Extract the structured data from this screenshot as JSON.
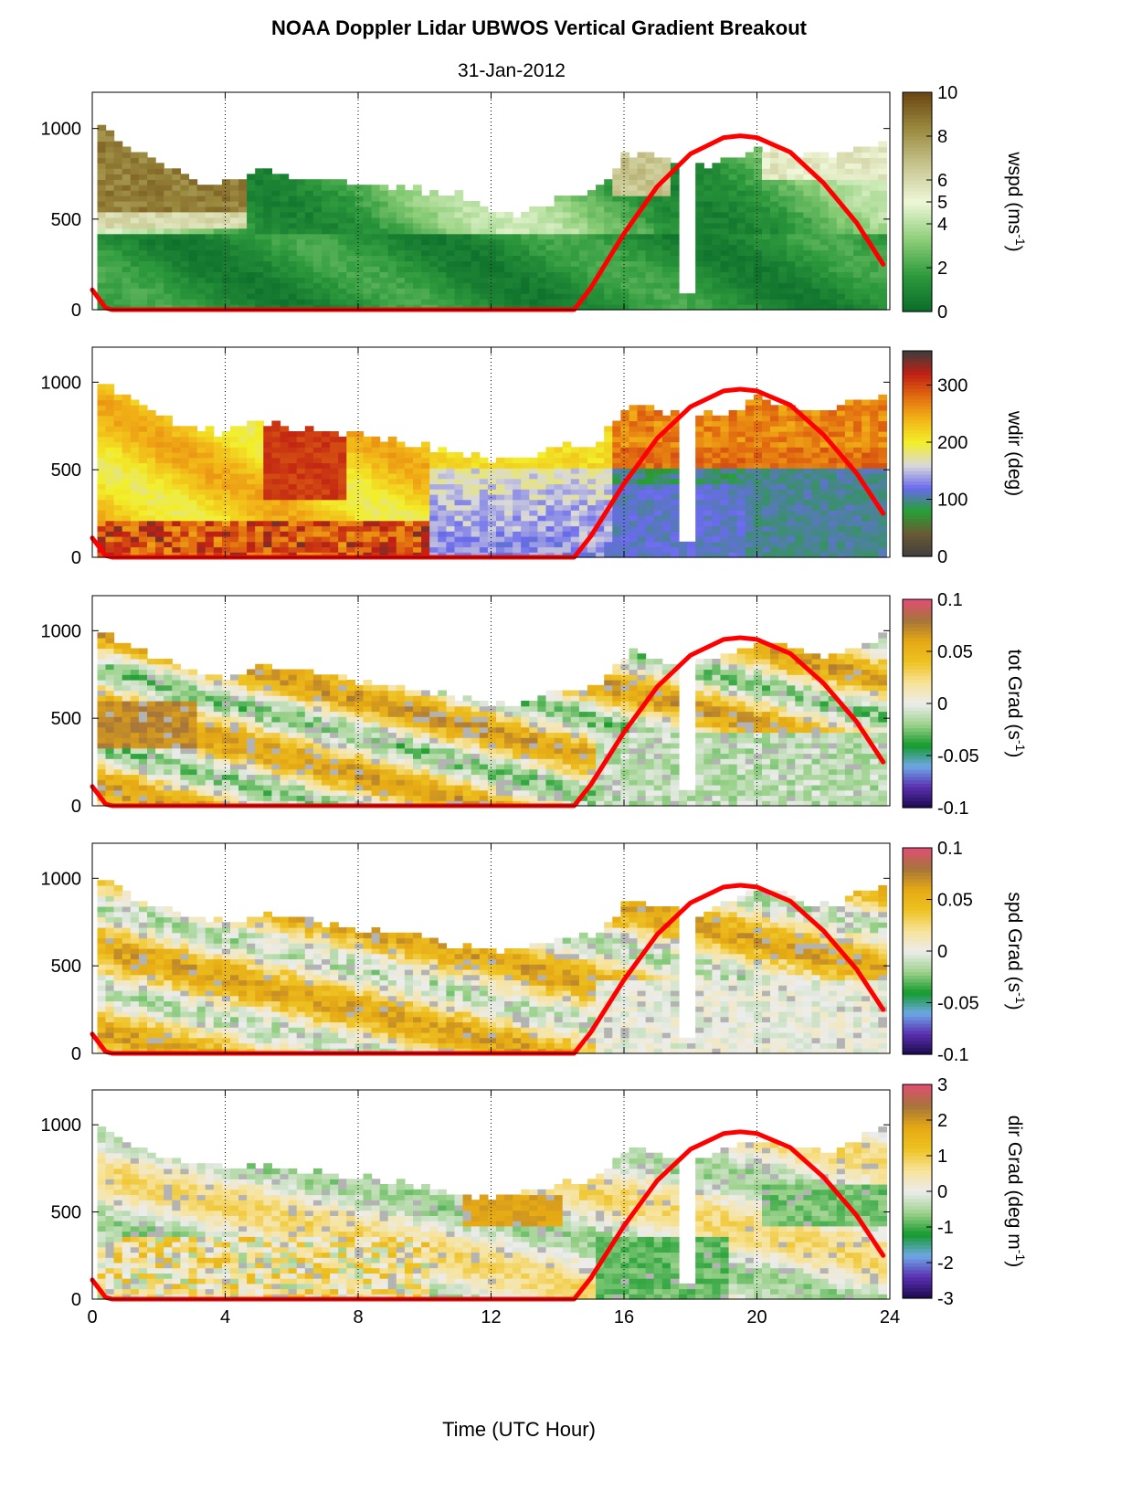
{
  "figure": {
    "title": "NOAA Doppler Lidar  UBWOS  Vertical Gradient Breakout",
    "subtitle": "31-Jan-2012",
    "xlabel": "Time (UTC Hour)"
  },
  "chart_data": [
    {
      "type": "heatmap",
      "name": "wspd",
      "ylabel": "wspd (ms",
      "ylabel_sup": "-1",
      "ylabel_end": ")",
      "xlim": [
        0,
        24
      ],
      "ylim": [
        0,
        1200
      ],
      "xticks": [
        0,
        4,
        8,
        12,
        16,
        20,
        24
      ],
      "yticks": [
        0,
        500,
        1000
      ],
      "grid": "vertical dotted at 4,8,12,16,20",
      "colorbar": {
        "range": [
          0,
          10
        ],
        "ticks": [
          0,
          2,
          4,
          5,
          6,
          8,
          10
        ],
        "tick_labels": [
          "0",
          "2",
          "4",
          "5",
          "6",
          "8",
          "10"
        ],
        "colors": [
          "#0a6b2a",
          "#2e9a3d",
          "#8fcf7a",
          "#eef7d8",
          "#c8c690",
          "#9b8a40",
          "#6b4611"
        ]
      },
      "top_height_profile": [
        [
          0,
          1000
        ],
        [
          1,
          870
        ],
        [
          2,
          800
        ],
        [
          3,
          700
        ],
        [
          4,
          680
        ],
        [
          5,
          760
        ],
        [
          6,
          720
        ],
        [
          7,
          700
        ],
        [
          8,
          680
        ],
        [
          9,
          650
        ],
        [
          10,
          640
        ],
        [
          11,
          620
        ],
        [
          12,
          520
        ],
        [
          13,
          520
        ],
        [
          14,
          600
        ],
        [
          15,
          640
        ],
        [
          16,
          860
        ],
        [
          17,
          820
        ],
        [
          18,
          780
        ],
        [
          19,
          800
        ],
        [
          20,
          880
        ],
        [
          21,
          860
        ],
        [
          22,
          820
        ],
        [
          23,
          880
        ],
        [
          24,
          900
        ]
      ],
      "gap": {
        "x": [
          17.85,
          18.05
        ],
        "y": [
          70,
          800
        ]
      }
    },
    {
      "type": "heatmap",
      "name": "wdir",
      "ylabel": "wdir (deg)",
      "xlim": [
        0,
        24
      ],
      "ylim": [
        0,
        1200
      ],
      "xticks": [
        0,
        4,
        8,
        12,
        16,
        20,
        24
      ],
      "yticks": [
        0,
        500,
        1000
      ],
      "colorbar": {
        "range": [
          0,
          360
        ],
        "ticks": [
          0,
          100,
          200,
          300
        ],
        "tick_labels": [
          "0",
          "100",
          "200",
          "300"
        ],
        "colors": [
          "#3f3f3f",
          "#6a5a34",
          "#26a035",
          "#6a6aee",
          "#d9d9d9",
          "#f2ef2a",
          "#f2b617",
          "#e26d10",
          "#c02014",
          "#3d3d3d"
        ]
      },
      "top_height_profile": [
        [
          0,
          1000
        ],
        [
          1,
          900
        ],
        [
          2,
          780
        ],
        [
          3,
          720
        ],
        [
          4,
          700
        ],
        [
          5,
          760
        ],
        [
          6,
          720
        ],
        [
          7,
          700
        ],
        [
          8,
          680
        ],
        [
          9,
          650
        ],
        [
          10,
          620
        ],
        [
          11,
          560
        ],
        [
          12,
          540
        ],
        [
          13,
          560
        ],
        [
          14,
          620
        ],
        [
          15,
          640
        ],
        [
          16,
          860
        ],
        [
          17,
          820
        ],
        [
          18,
          780
        ],
        [
          19,
          820
        ],
        [
          20,
          900
        ],
        [
          21,
          860
        ],
        [
          22,
          820
        ],
        [
          23,
          900
        ],
        [
          24,
          920
        ]
      ],
      "gap": {
        "x": [
          17.85,
          18.05
        ],
        "y": [
          70,
          800
        ]
      }
    },
    {
      "type": "heatmap",
      "name": "tot Grad",
      "ylabel": "tot Grad (s",
      "ylabel_sup": "-1",
      "ylabel_end": ")",
      "xlim": [
        0,
        24
      ],
      "ylim": [
        0,
        1200
      ],
      "xticks": [
        0,
        4,
        8,
        12,
        16,
        20,
        24
      ],
      "yticks": [
        0,
        500,
        1000
      ],
      "colorbar": {
        "range": [
          -0.1,
          0.1
        ],
        "ticks": [
          -0.1,
          -0.05,
          0,
          0.05,
          0.1
        ],
        "tick_labels": [
          "-0.1",
          "-0.05",
          "0",
          "0.05",
          "0.1"
        ],
        "colors": [
          "#1a0a4a",
          "#5a2fb0",
          "#6ea8e6",
          "#159a2c",
          "#9cd28c",
          "#ececec",
          "#f7e39a",
          "#eec222",
          "#e5a814",
          "#a6753a",
          "#e04e74"
        ]
      },
      "top_height_profile": [
        [
          0,
          1000
        ],
        [
          1,
          880
        ],
        [
          2,
          820
        ],
        [
          3,
          760
        ],
        [
          4,
          720
        ],
        [
          5,
          780
        ],
        [
          6,
          760
        ],
        [
          7,
          720
        ],
        [
          8,
          700
        ],
        [
          9,
          680
        ],
        [
          10,
          640
        ],
        [
          11,
          600
        ],
        [
          12,
          560
        ],
        [
          13,
          580
        ],
        [
          14,
          640
        ],
        [
          15,
          660
        ],
        [
          16,
          860
        ],
        [
          17,
          820
        ],
        [
          18,
          780
        ],
        [
          19,
          860
        ],
        [
          20,
          920
        ],
        [
          21,
          880
        ],
        [
          22,
          820
        ],
        [
          23,
          900
        ],
        [
          24,
          980
        ]
      ],
      "gap": {
        "x": [
          17.85,
          18.05
        ],
        "y": [
          70,
          800
        ]
      }
    },
    {
      "type": "heatmap",
      "name": "spd Grad",
      "ylabel": "spd Grad (s",
      "ylabel_sup": "-1",
      "ylabel_end": ")",
      "xlim": [
        0,
        24
      ],
      "ylim": [
        0,
        1200
      ],
      "xticks": [
        0,
        4,
        8,
        12,
        16,
        20,
        24
      ],
      "yticks": [
        0,
        500,
        1000
      ],
      "colorbar": {
        "range": [
          -0.1,
          0.1
        ],
        "ticks": [
          -0.1,
          -0.05,
          0,
          0.05,
          0.1
        ],
        "tick_labels": [
          "-0.1",
          "-0.05",
          "0",
          "0.05",
          "0.1"
        ],
        "colors": [
          "#1a0a4a",
          "#5a2fb0",
          "#6ea8e6",
          "#159a2c",
          "#9cd28c",
          "#ececec",
          "#f7e39a",
          "#eec222",
          "#e5a814",
          "#a6753a",
          "#e04e74"
        ]
      },
      "top_height_profile": [
        [
          0,
          1000
        ],
        [
          1,
          880
        ],
        [
          2,
          820
        ],
        [
          3,
          760
        ],
        [
          4,
          720
        ],
        [
          5,
          780
        ],
        [
          6,
          760
        ],
        [
          7,
          720
        ],
        [
          8,
          700
        ],
        [
          9,
          680
        ],
        [
          10,
          640
        ],
        [
          11,
          600
        ],
        [
          12,
          560
        ],
        [
          13,
          580
        ],
        [
          14,
          640
        ],
        [
          15,
          660
        ],
        [
          16,
          860
        ],
        [
          17,
          820
        ],
        [
          18,
          780
        ],
        [
          19,
          860
        ],
        [
          20,
          920
        ],
        [
          21,
          880
        ],
        [
          22,
          820
        ],
        [
          23,
          900
        ],
        [
          24,
          980
        ]
      ],
      "gap": {
        "x": [
          17.85,
          18.05
        ],
        "y": [
          70,
          800
        ]
      }
    },
    {
      "type": "heatmap",
      "name": "dir Grad",
      "ylabel": "dir Grad (deg m",
      "ylabel_sup": "-1",
      "ylabel_end": ")",
      "xlim": [
        0,
        24
      ],
      "ylim": [
        0,
        1200
      ],
      "xticks": [
        0,
        4,
        8,
        12,
        16,
        20,
        24
      ],
      "xtick_labels": [
        "0",
        "4",
        "8",
        "12",
        "16",
        "20",
        "24"
      ],
      "yticks": [
        0,
        500,
        1000
      ],
      "colorbar": {
        "range": [
          -3,
          3
        ],
        "ticks": [
          -3,
          -2,
          -1,
          0,
          1,
          2,
          3
        ],
        "tick_labels": [
          "-3",
          "-2",
          "-1",
          "0",
          "1",
          "2",
          "3"
        ],
        "colors": [
          "#1a0a4a",
          "#5a2fb0",
          "#6ea8e6",
          "#159a2c",
          "#9cd28c",
          "#ececec",
          "#f7e39a",
          "#eec222",
          "#e5a814",
          "#a6753a",
          "#e04e74"
        ]
      },
      "top_height_profile": [
        [
          0,
          1000
        ],
        [
          1,
          860
        ],
        [
          2,
          800
        ],
        [
          3,
          760
        ],
        [
          4,
          740
        ],
        [
          5,
          760
        ],
        [
          6,
          720
        ],
        [
          7,
          700
        ],
        [
          8,
          680
        ],
        [
          9,
          660
        ],
        [
          10,
          620
        ],
        [
          11,
          580
        ],
        [
          12,
          560
        ],
        [
          13,
          600
        ],
        [
          14,
          640
        ],
        [
          15,
          660
        ],
        [
          16,
          860
        ],
        [
          17,
          820
        ],
        [
          18,
          780
        ],
        [
          19,
          860
        ],
        [
          20,
          900
        ],
        [
          21,
          860
        ],
        [
          22,
          820
        ],
        [
          23,
          900
        ],
        [
          24,
          980
        ]
      ],
      "gap": {
        "x": [
          17.85,
          18.05
        ],
        "y": [
          70,
          800
        ]
      }
    }
  ],
  "overlay": {
    "name": "red curve",
    "color": "#ff0000",
    "points": [
      [
        0.0,
        110
      ],
      [
        0.2,
        60
      ],
      [
        0.4,
        10
      ],
      [
        0.6,
        0
      ],
      [
        14.5,
        0
      ],
      [
        15.0,
        120
      ],
      [
        16.0,
        420
      ],
      [
        17.0,
        680
      ],
      [
        18.0,
        860
      ],
      [
        19.0,
        950
      ],
      [
        19.5,
        960
      ],
      [
        20.0,
        950
      ],
      [
        21.0,
        870
      ],
      [
        22.0,
        700
      ],
      [
        23.0,
        480
      ],
      [
        23.8,
        250
      ]
    ]
  }
}
